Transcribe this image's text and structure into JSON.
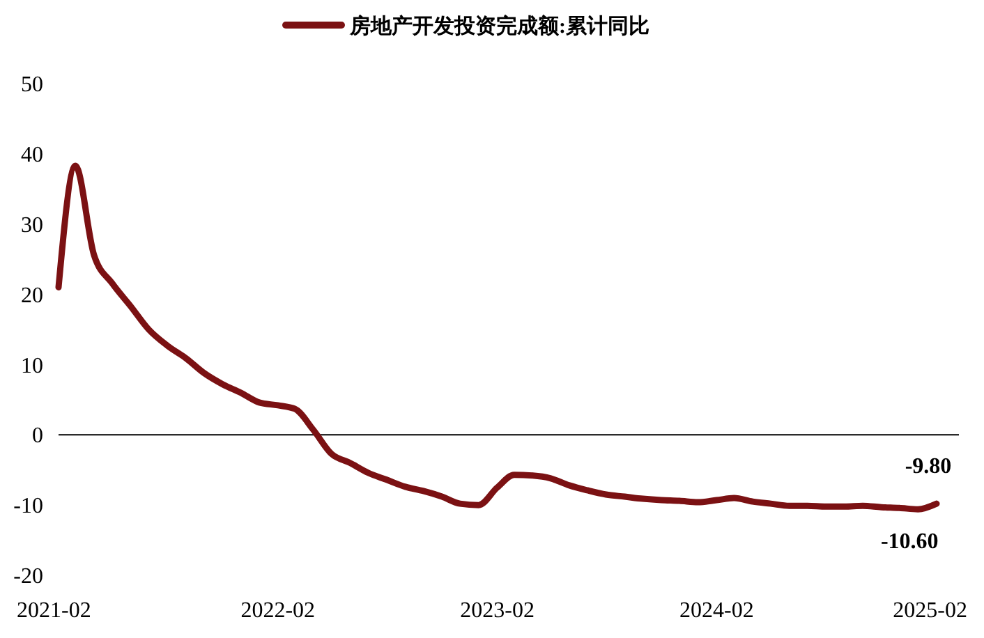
{
  "chart_data": {
    "type": "line",
    "x": [
      "2021-02",
      "2021-03",
      "2021-04",
      "2021-05",
      "2021-06",
      "2021-07",
      "2021-08",
      "2021-09",
      "2021-10",
      "2021-11",
      "2021-12",
      "2022-01",
      "2022-02",
      "2022-03",
      "2022-04",
      "2022-05",
      "2022-06",
      "2022-07",
      "2022-08",
      "2022-09",
      "2022-10",
      "2022-11",
      "2022-12",
      "2023-01",
      "2023-02",
      "2023-03",
      "2023-04",
      "2023-05",
      "2023-06",
      "2023-07",
      "2023-08",
      "2023-09",
      "2023-10",
      "2023-11",
      "2023-12",
      "2024-01",
      "2024-02",
      "2024-03",
      "2024-04",
      "2024-05",
      "2024-06",
      "2024-07",
      "2024-08",
      "2024-09",
      "2024-10",
      "2024-11",
      "2024-12",
      "2025-01",
      "2025-02"
    ],
    "series": [
      {
        "name": "房地产开发投资完成额:累计同比",
        "color": "#7b1113",
        "values": [
          21,
          38.3,
          25.6,
          21.6,
          18.3,
          15.0,
          12.7,
          10.9,
          8.8,
          7.2,
          6.0,
          4.6,
          4.2,
          3.7,
          0.7,
          -2.7,
          -4.0,
          -5.4,
          -6.4,
          -7.4,
          -8.0,
          -8.8,
          -9.8,
          -10.0,
          -7.5,
          -5.7,
          -5.8,
          -6.2,
          -7.2,
          -7.9,
          -8.5,
          -8.8,
          -9.1,
          -9.3,
          -9.4,
          -9.6,
          -9.3,
          -9.0,
          -9.5,
          -9.8,
          -10.1,
          -10.1,
          -10.2,
          -10.2,
          -10.1,
          -10.3,
          -10.4,
          -10.6,
          -9.8
        ]
      }
    ],
    "xlim": [
      "2021-02",
      "2025-02"
    ],
    "xticks": [
      {
        "value": "2021-02",
        "label": "2021-02"
      },
      {
        "value": "2022-02",
        "label": "2022-02"
      },
      {
        "value": "2023-02",
        "label": "2023-02"
      },
      {
        "value": "2024-02",
        "label": "2024-02"
      },
      {
        "value": "2025-02",
        "label": "2025-02"
      }
    ],
    "ylim": [
      -20,
      50
    ],
    "yticks": [
      -20,
      -10,
      0,
      10,
      20,
      30,
      40,
      50
    ],
    "annotations": [
      {
        "text": "-9.80",
        "x": "2025-02",
        "y": -9.8
      },
      {
        "text": "-10.60",
        "x": "2025-01",
        "y": -10.6
      }
    ],
    "ref_lines": [
      {
        "axis": "y",
        "value": 0,
        "color": "#000000"
      }
    ],
    "legend": "top",
    "marker": "none",
    "line_style": "solid"
  }
}
